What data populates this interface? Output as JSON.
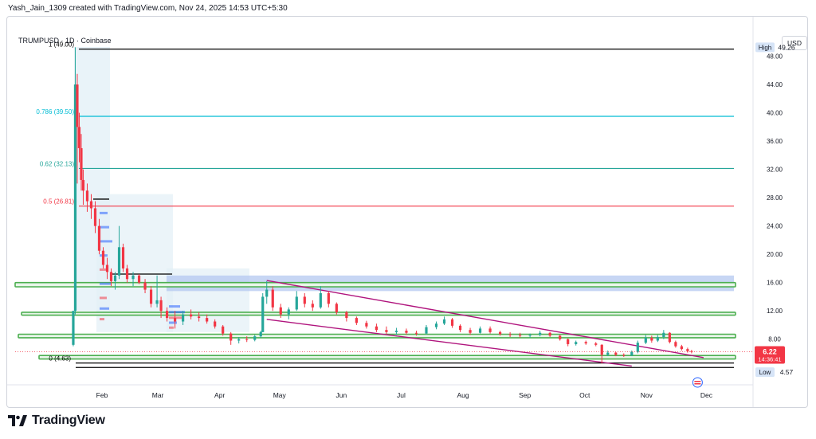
{
  "header": {
    "attribution": "Yash_Jain_1309 created with TradingView.com, Nov 24, 2025 14:53 UTC+5:30",
    "symbol_line": "TRUMPUSD · 1D · Coinbase",
    "currency": "USD"
  },
  "brand": {
    "name": "TradingView",
    "color": "#131722"
  },
  "chart_data": {
    "type": "candlestick",
    "x_ticks": [
      "Feb",
      "Mar",
      "Apr",
      "May",
      "Jun",
      "Jul",
      "Aug",
      "Sep",
      "Oct",
      "Nov",
      "Dec"
    ],
    "y_ticks": [
      "8.00",
      "12.00",
      "16.00",
      "20.00",
      "24.00",
      "28.00",
      "32.00",
      "36.00",
      "40.00",
      "44.00",
      "48.00"
    ],
    "ylim": [
      2.0,
      52.0
    ],
    "fib_levels": [
      {
        "label": "1 (49.00)",
        "value": 49.0,
        "color": "#000000"
      },
      {
        "label": "0.786 (39.50)",
        "value": 39.5,
        "color": "#00bcd4"
      },
      {
        "label": "0.62 (32.13)",
        "value": 32.13,
        "color": "#26a69a"
      },
      {
        "label": "0.5 (26.81)",
        "value": 26.81,
        "color": "#f23645"
      },
      {
        "label": "0 (4.63)",
        "value": 4.63,
        "color": "#000000"
      }
    ],
    "support_resistance_zones": [
      {
        "low": 15.4,
        "high": 16.0,
        "color": "#4caf50"
      },
      {
        "low": 11.4,
        "high": 11.8,
        "color": "#4caf50"
      },
      {
        "low": 8.2,
        "high": 8.7,
        "color": "#4caf50"
      },
      {
        "low": 5.2,
        "high": 5.7,
        "color": "#4caf50"
      }
    ],
    "supply_zone": {
      "low": 14.8,
      "high": 17.0,
      "color": "#b4c8f0"
    },
    "trend_channel": {
      "color": "#b0147d",
      "upper": [
        {
          "date": "2025-04-25",
          "price": 16.3
        },
        {
          "date": "2025-11-30",
          "price": 5.4
        }
      ],
      "lower": [
        {
          "date": "2025-04-25",
          "price": 10.8
        },
        {
          "date": "2025-10-25",
          "price": 4.2
        }
      ]
    },
    "high": {
      "label": "High",
      "value": "49.26"
    },
    "low": {
      "label": "Low",
      "value": "4.57"
    },
    "last_price": {
      "value": "6.22",
      "countdown": "14:36:41",
      "color": "#f23645"
    },
    "candles": [
      {
        "date": "2025-01-18",
        "o": 7.2,
        "h": 12.0,
        "l": 7.0,
        "c": 12.0
      },
      {
        "date": "2025-01-19",
        "o": 12.0,
        "h": 49.26,
        "l": 11.5,
        "c": 44.0
      },
      {
        "date": "2025-01-20",
        "o": 44.0,
        "h": 45.5,
        "l": 30.0,
        "c": 38.0
      },
      {
        "date": "2025-01-21",
        "o": 38.0,
        "h": 40.0,
        "l": 33.0,
        "c": 35.0
      },
      {
        "date": "2025-01-22",
        "o": 35.0,
        "h": 37.0,
        "l": 29.0,
        "c": 30.5
      },
      {
        "date": "2025-01-23",
        "o": 30.5,
        "h": 32.0,
        "l": 27.0,
        "c": 29.0
      },
      {
        "date": "2025-01-25",
        "o": 29.0,
        "h": 30.0,
        "l": 26.0,
        "c": 27.5
      },
      {
        "date": "2025-01-27",
        "o": 27.5,
        "h": 28.5,
        "l": 25.0,
        "c": 26.5
      },
      {
        "date": "2025-01-29",
        "o": 26.5,
        "h": 27.5,
        "l": 23.0,
        "c": 24.0
      },
      {
        "date": "2025-01-31",
        "o": 24.0,
        "h": 25.0,
        "l": 20.0,
        "c": 20.5
      },
      {
        "date": "2025-02-02",
        "o": 20.5,
        "h": 21.0,
        "l": 18.0,
        "c": 18.5
      },
      {
        "date": "2025-02-04",
        "o": 18.5,
        "h": 19.5,
        "l": 16.5,
        "c": 17.5
      },
      {
        "date": "2025-02-06",
        "o": 17.5,
        "h": 18.0,
        "l": 15.5,
        "c": 16.2
      },
      {
        "date": "2025-02-08",
        "o": 16.2,
        "h": 17.5,
        "l": 15.0,
        "c": 17.0
      },
      {
        "date": "2025-02-10",
        "o": 17.0,
        "h": 24.0,
        "l": 16.5,
        "c": 21.0
      },
      {
        "date": "2025-02-12",
        "o": 21.0,
        "h": 21.5,
        "l": 17.5,
        "c": 18.0
      },
      {
        "date": "2025-02-14",
        "o": 18.0,
        "h": 18.5,
        "l": 16.0,
        "c": 16.5
      },
      {
        "date": "2025-02-17",
        "o": 16.5,
        "h": 17.5,
        "l": 15.5,
        "c": 17.0
      },
      {
        "date": "2025-02-20",
        "o": 17.0,
        "h": 17.2,
        "l": 15.8,
        "c": 16.0
      },
      {
        "date": "2025-02-23",
        "o": 16.0,
        "h": 16.5,
        "l": 14.5,
        "c": 15.0
      },
      {
        "date": "2025-02-26",
        "o": 15.0,
        "h": 15.5,
        "l": 12.5,
        "c": 13.0
      },
      {
        "date": "2025-03-01",
        "o": 13.0,
        "h": 17.0,
        "l": 12.5,
        "c": 13.5
      },
      {
        "date": "2025-03-03",
        "o": 13.5,
        "h": 14.0,
        "l": 11.0,
        "c": 12.0
      },
      {
        "date": "2025-03-06",
        "o": 12.0,
        "h": 12.5,
        "l": 10.5,
        "c": 11.0
      },
      {
        "date": "2025-03-10",
        "o": 11.0,
        "h": 12.0,
        "l": 9.5,
        "c": 10.5
      },
      {
        "date": "2025-03-14",
        "o": 10.5,
        "h": 12.0,
        "l": 10.0,
        "c": 11.5
      },
      {
        "date": "2025-03-18",
        "o": 11.5,
        "h": 12.2,
        "l": 10.8,
        "c": 11.2
      },
      {
        "date": "2025-03-22",
        "o": 11.2,
        "h": 11.8,
        "l": 10.5,
        "c": 11.0
      },
      {
        "date": "2025-03-26",
        "o": 11.0,
        "h": 11.5,
        "l": 10.2,
        "c": 10.5
      },
      {
        "date": "2025-03-30",
        "o": 10.5,
        "h": 10.8,
        "l": 9.5,
        "c": 9.8
      },
      {
        "date": "2025-04-03",
        "o": 9.8,
        "h": 10.0,
        "l": 8.5,
        "c": 8.8
      },
      {
        "date": "2025-04-07",
        "o": 8.8,
        "h": 9.0,
        "l": 7.2,
        "c": 7.8
      },
      {
        "date": "2025-04-11",
        "o": 7.8,
        "h": 8.3,
        "l": 7.4,
        "c": 8.0
      },
      {
        "date": "2025-04-15",
        "o": 8.0,
        "h": 8.4,
        "l": 7.6,
        "c": 7.9
      },
      {
        "date": "2025-04-19",
        "o": 7.9,
        "h": 8.6,
        "l": 7.7,
        "c": 8.4
      },
      {
        "date": "2025-04-22",
        "o": 8.4,
        "h": 9.2,
        "l": 8.2,
        "c": 9.0
      },
      {
        "date": "2025-04-23",
        "o": 9.0,
        "h": 14.5,
        "l": 9.0,
        "c": 14.0
      },
      {
        "date": "2025-04-25",
        "o": 14.0,
        "h": 16.2,
        "l": 13.0,
        "c": 15.0
      },
      {
        "date": "2025-04-28",
        "o": 15.0,
        "h": 15.5,
        "l": 12.0,
        "c": 12.5
      },
      {
        "date": "2025-05-02",
        "o": 12.5,
        "h": 13.0,
        "l": 11.0,
        "c": 11.5
      },
      {
        "date": "2025-05-06",
        "o": 11.5,
        "h": 12.5,
        "l": 10.8,
        "c": 12.2
      },
      {
        "date": "2025-05-10",
        "o": 12.2,
        "h": 14.8,
        "l": 12.0,
        "c": 14.0
      },
      {
        "date": "2025-05-14",
        "o": 14.0,
        "h": 14.5,
        "l": 12.5,
        "c": 13.0
      },
      {
        "date": "2025-05-18",
        "o": 13.0,
        "h": 13.5,
        "l": 12.0,
        "c": 12.5
      },
      {
        "date": "2025-05-22",
        "o": 12.5,
        "h": 15.5,
        "l": 12.3,
        "c": 14.5
      },
      {
        "date": "2025-05-26",
        "o": 14.5,
        "h": 14.8,
        "l": 12.5,
        "c": 13.0
      },
      {
        "date": "2025-05-30",
        "o": 13.0,
        "h": 13.2,
        "l": 11.5,
        "c": 11.8
      },
      {
        "date": "2025-06-04",
        "o": 11.8,
        "h": 12.0,
        "l": 10.5,
        "c": 11.0
      },
      {
        "date": "2025-06-09",
        "o": 11.0,
        "h": 11.2,
        "l": 10.0,
        "c": 10.3
      },
      {
        "date": "2025-06-14",
        "o": 10.3,
        "h": 10.6,
        "l": 9.5,
        "c": 9.8
      },
      {
        "date": "2025-06-19",
        "o": 9.8,
        "h": 10.2,
        "l": 9.0,
        "c": 9.3
      },
      {
        "date": "2025-06-24",
        "o": 9.3,
        "h": 9.8,
        "l": 8.7,
        "c": 9.0
      },
      {
        "date": "2025-06-29",
        "o": 9.0,
        "h": 9.6,
        "l": 8.6,
        "c": 9.2
      },
      {
        "date": "2025-07-04",
        "o": 9.2,
        "h": 9.5,
        "l": 8.6,
        "c": 8.9
      },
      {
        "date": "2025-07-09",
        "o": 8.9,
        "h": 9.2,
        "l": 8.5,
        "c": 8.8
      },
      {
        "date": "2025-07-14",
        "o": 8.8,
        "h": 10.0,
        "l": 8.7,
        "c": 9.7
      },
      {
        "date": "2025-07-19",
        "o": 9.7,
        "h": 10.5,
        "l": 9.4,
        "c": 10.2
      },
      {
        "date": "2025-07-23",
        "o": 10.2,
        "h": 11.2,
        "l": 10.0,
        "c": 10.8
      },
      {
        "date": "2025-07-27",
        "o": 10.8,
        "h": 11.0,
        "l": 9.6,
        "c": 9.9
      },
      {
        "date": "2025-07-31",
        "o": 9.9,
        "h": 10.1,
        "l": 9.0,
        "c": 9.3
      },
      {
        "date": "2025-08-05",
        "o": 9.3,
        "h": 9.6,
        "l": 8.6,
        "c": 8.9
      },
      {
        "date": "2025-08-10",
        "o": 8.9,
        "h": 9.8,
        "l": 8.8,
        "c": 9.5
      },
      {
        "date": "2025-08-15",
        "o": 9.5,
        "h": 9.8,
        "l": 8.8,
        "c": 9.0
      },
      {
        "date": "2025-08-20",
        "o": 9.0,
        "h": 9.2,
        "l": 8.5,
        "c": 8.7
      },
      {
        "date": "2025-08-25",
        "o": 8.7,
        "h": 9.0,
        "l": 8.3,
        "c": 8.6
      },
      {
        "date": "2025-08-30",
        "o": 8.6,
        "h": 8.9,
        "l": 8.2,
        "c": 8.5
      },
      {
        "date": "2025-09-04",
        "o": 8.5,
        "h": 8.8,
        "l": 8.2,
        "c": 8.6
      },
      {
        "date": "2025-09-09",
        "o": 8.6,
        "h": 9.2,
        "l": 8.4,
        "c": 8.9
      },
      {
        "date": "2025-09-14",
        "o": 8.9,
        "h": 9.0,
        "l": 8.3,
        "c": 8.5
      },
      {
        "date": "2025-09-19",
        "o": 8.5,
        "h": 8.6,
        "l": 7.8,
        "c": 8.0
      },
      {
        "date": "2025-09-23",
        "o": 8.0,
        "h": 8.1,
        "l": 7.0,
        "c": 7.3
      },
      {
        "date": "2025-09-27",
        "o": 7.3,
        "h": 7.8,
        "l": 7.1,
        "c": 7.6
      },
      {
        "date": "2025-10-02",
        "o": 7.6,
        "h": 7.8,
        "l": 7.2,
        "c": 7.4
      },
      {
        "date": "2025-10-07",
        "o": 7.4,
        "h": 7.6,
        "l": 7.0,
        "c": 7.2
      },
      {
        "date": "2025-10-10",
        "o": 7.2,
        "h": 7.3,
        "l": 4.57,
        "c": 5.8
      },
      {
        "date": "2025-10-13",
        "o": 5.8,
        "h": 6.4,
        "l": 5.6,
        "c": 6.1
      },
      {
        "date": "2025-10-17",
        "o": 6.1,
        "h": 6.2,
        "l": 5.6,
        "c": 5.8
      },
      {
        "date": "2025-10-21",
        "o": 5.8,
        "h": 6.0,
        "l": 5.5,
        "c": 5.7
      },
      {
        "date": "2025-10-25",
        "o": 5.7,
        "h": 6.4,
        "l": 5.6,
        "c": 6.2
      },
      {
        "date": "2025-10-28",
        "o": 6.2,
        "h": 7.8,
        "l": 6.0,
        "c": 7.5
      },
      {
        "date": "2025-11-01",
        "o": 7.5,
        "h": 8.6,
        "l": 7.3,
        "c": 8.2
      },
      {
        "date": "2025-11-04",
        "o": 8.2,
        "h": 8.5,
        "l": 7.5,
        "c": 7.8
      },
      {
        "date": "2025-11-07",
        "o": 7.8,
        "h": 8.6,
        "l": 7.6,
        "c": 8.3
      },
      {
        "date": "2025-11-10",
        "o": 8.3,
        "h": 9.3,
        "l": 8.0,
        "c": 8.9
      },
      {
        "date": "2025-11-13",
        "o": 8.9,
        "h": 9.0,
        "l": 7.4,
        "c": 7.6
      },
      {
        "date": "2025-11-16",
        "o": 7.6,
        "h": 7.8,
        "l": 6.8,
        "c": 7.0
      },
      {
        "date": "2025-11-19",
        "o": 7.0,
        "h": 7.2,
        "l": 6.4,
        "c": 6.6
      },
      {
        "date": "2025-11-22",
        "o": 6.6,
        "h": 6.8,
        "l": 6.1,
        "c": 6.3
      },
      {
        "date": "2025-11-24",
        "o": 6.3,
        "h": 6.5,
        "l": 6.0,
        "c": 6.22
      }
    ],
    "colors": {
      "up": "#26a69a",
      "down": "#f23645"
    }
  }
}
